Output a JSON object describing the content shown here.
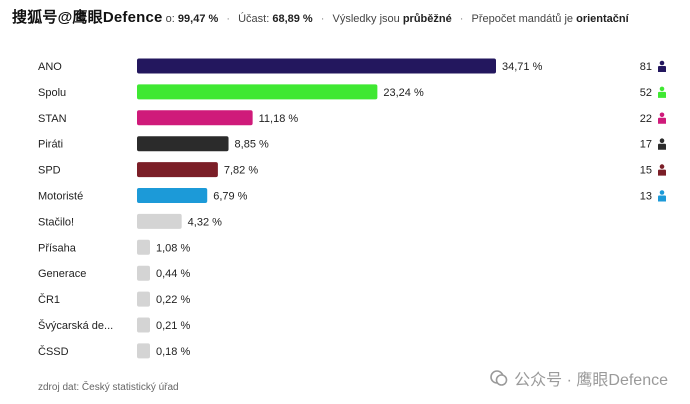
{
  "header": {
    "watermark_left": "搜狐号@鹰眼Defence",
    "counted_label": "o:",
    "counted_value": "99,47 %",
    "turnout_label": "Účast:",
    "turnout_value": "68,89 %",
    "results_prefix": "Výsledky jsou",
    "results_state": "průběžné",
    "mandates_prefix": "Přepočet mandátů je",
    "mandates_state": "orientační"
  },
  "chart_data": {
    "type": "bar",
    "orientation": "horizontal",
    "categories": [
      "ANO",
      "Spolu",
      "STAN",
      "Piráti",
      "SPD",
      "Motoristé",
      "Stačilo!",
      "Přísaha",
      "Generace",
      "ČR1",
      "Švýcarská de...",
      "ČSSD"
    ],
    "values": [
      34.71,
      23.24,
      11.18,
      8.85,
      7.82,
      6.79,
      4.32,
      1.08,
      0.44,
      0.22,
      0.21,
      0.18
    ],
    "value_labels": [
      "34,71 %",
      "23,24 %",
      "11,18 %",
      "8,85 %",
      "7,82 %",
      "6,79 %",
      "4,32 %",
      "1,08 %",
      "0,44 %",
      "0,22 %",
      "0,21 %",
      "0,18 %"
    ],
    "colors": [
      "#23175e",
      "#3fe832",
      "#cf1a7a",
      "#2b2b2b",
      "#7b1e27",
      "#1c9ad8",
      "#d4d4d4",
      "#d4d4d4",
      "#d4d4d4",
      "#d4d4d4",
      "#d4d4d4",
      "#d4d4d4"
    ],
    "seats": [
      81,
      52,
      22,
      17,
      15,
      13
    ],
    "seat_icon_colors": [
      "#23175e",
      "#3fe832",
      "#cf1a7a",
      "#2b2b2b",
      "#7b1e27",
      "#1c9ad8"
    ],
    "xlim": [
      0,
      34.71
    ],
    "grid": false
  },
  "icons": {
    "seat_icon": "person-icon"
  },
  "footer": {
    "source": "zdroj dat: Český statistický úřad",
    "watermark": "公众号 · 鹰眼Defence"
  }
}
